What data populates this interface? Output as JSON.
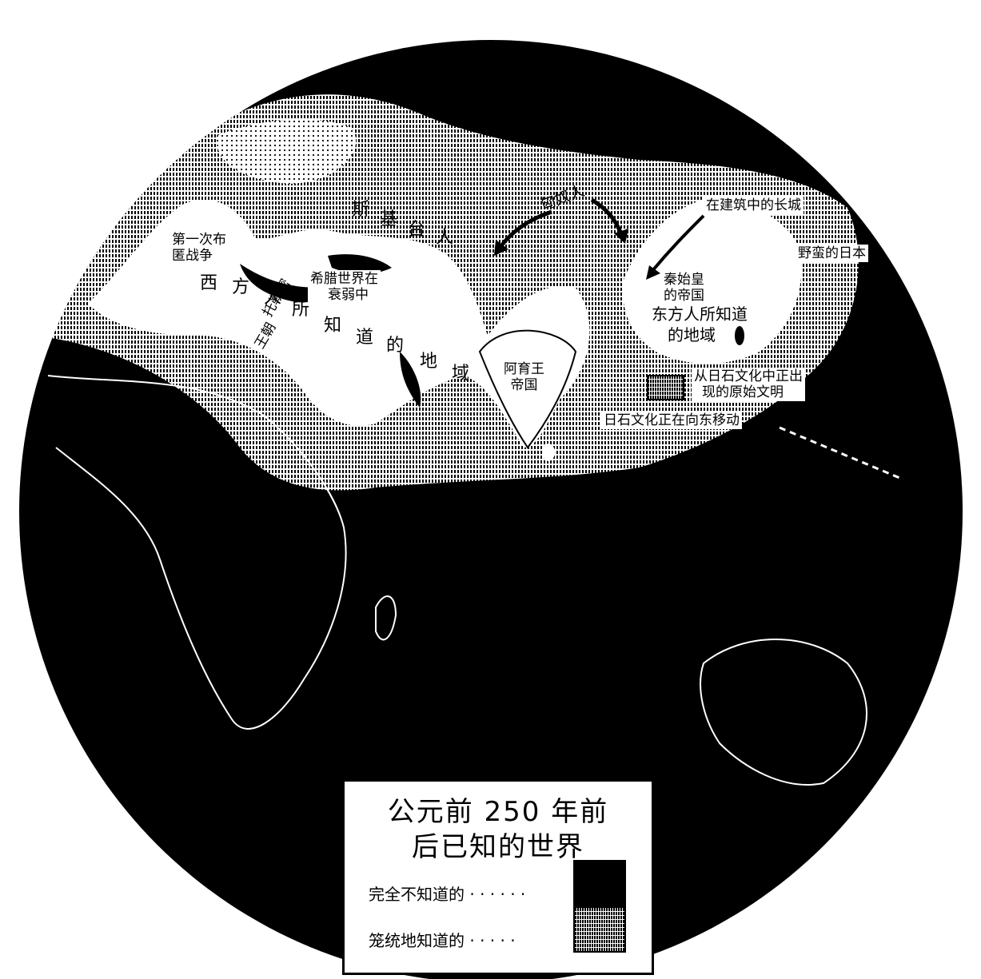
{
  "labels": {
    "punic_war": [
      "第一次布",
      "匿战争"
    ],
    "west_known": [
      "西",
      "方",
      "人",
      "所",
      "知",
      "道",
      "的",
      "地",
      "域"
    ],
    "greek_decline": [
      "希腊世界在",
      "衰弱中"
    ],
    "scythians": [
      "斯",
      "基",
      "台",
      "人"
    ],
    "huns": "匈奴人",
    "great_wall": "在建筑中的长城",
    "japan": "野蛮的日本",
    "qin": [
      "秦始皇",
      "的帝国"
    ],
    "east_known": [
      "东方人所知道",
      "的地域"
    ],
    "ashoka": [
      "阿育王",
      "帝国"
    ],
    "neolithic_civ": [
      "从日石文化中正出",
      "现的原始文明"
    ],
    "neolithic_east": "日石文化正在向东移动",
    "ptolemy": [
      "托勒密",
      "王朝"
    ]
  },
  "legend": {
    "title_line1": "公元前 250 年前",
    "title_line2": "后已知的世界",
    "unknown_label": "完全不知道的",
    "vague_label": "笼统地知道的",
    "unknown_color": "#000000",
    "vague_pattern": "vertical-hatch"
  }
}
